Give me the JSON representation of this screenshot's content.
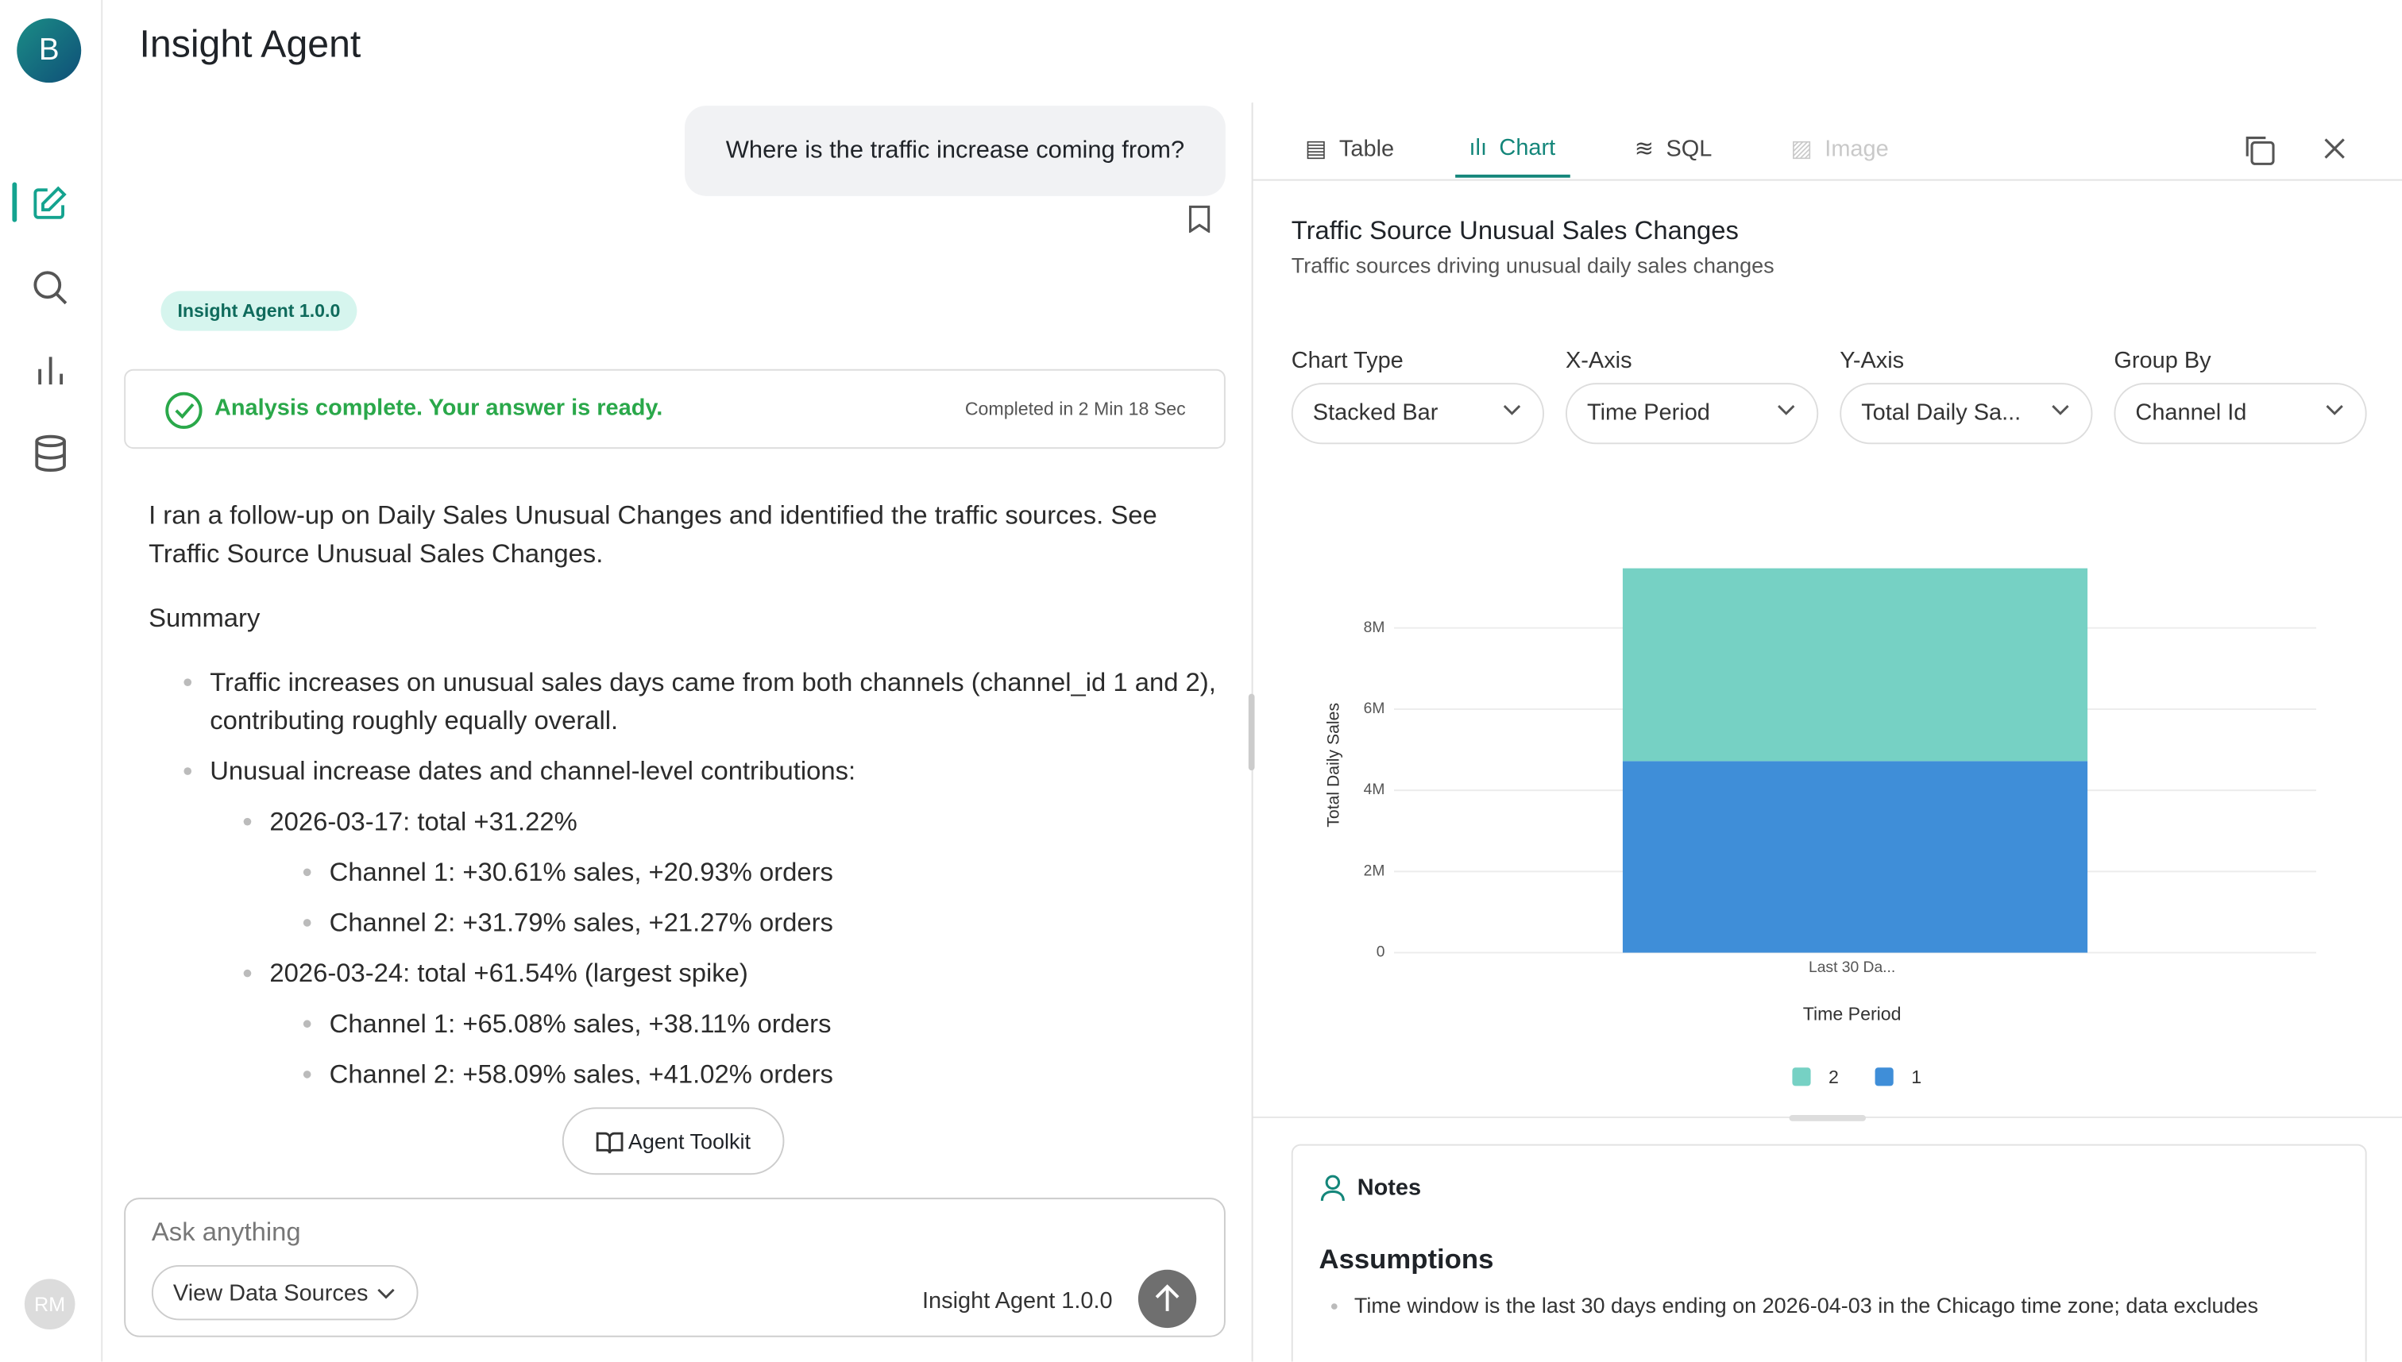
{
  "app": {
    "avatar": "B",
    "user": "RM"
  },
  "header": {
    "title": "Insight Agent"
  },
  "chat": {
    "question": "Where is the traffic increase coming from?",
    "badge": "Insight Agent 1.0.0",
    "status": "Analysis complete. Your answer is ready.",
    "duration": "Completed in 2 Min 18 Sec",
    "intro": "I ran a follow-up on Daily Sales Unusual Changes and identified the traffic sources. See Traffic Source Unusual Sales Changes.",
    "summary": {
      "heading": "Summary",
      "items": [
        {
          "text": "Traffic increases on unusual sales days came from both channels (channel_id 1 and 2), contributing roughly equally overall."
        },
        {
          "text": "Unusual increase dates and channel-level contributions:",
          "children": [
            {
              "text": "2026-03-17: total +31.22%",
              "children": [
                {
                  "text": "Channel 1: +30.61% sales, +20.93% orders"
                },
                {
                  "text": "Channel 2: +31.79% sales, +21.27% orders"
                }
              ]
            },
            {
              "text": "2026-03-24: total +61.54% (largest spike)",
              "children": [
                {
                  "text": "Channel 1: +65.08% sales, +38.11% orders"
                },
                {
                  "text": "Channel 2: +58.09% sales, +41.02% orders"
                }
              ]
            }
          ]
        }
      ]
    },
    "toolkit": "Agent Toolkit",
    "input_placeholder": "Ask anything",
    "data_sources": "View Data Sources",
    "footer_version": "Insight Agent 1.0.0"
  },
  "panel": {
    "tabs": [
      "Table",
      "Chart",
      "SQL",
      "Image"
    ],
    "controls": [
      {
        "label": "Chart Type",
        "value": "Stacked Bar"
      },
      {
        "label": "X-Axis",
        "value": "Time Period"
      },
      {
        "label": "Y-Axis",
        "value": "Total Daily Sa..."
      },
      {
        "label": "Group By",
        "value": "Channel Id"
      }
    ],
    "notes": {
      "title": "Notes",
      "heading": "Assumptions",
      "items": [
        "Time window is the last 30 days ending on 2026-04-03 in the Chicago time zone; data excludes"
      ]
    }
  },
  "chart_data": {
    "type": "stacked_bar",
    "title": "Traffic Source Unusual Sales Changes",
    "subtitle": "Traffic sources driving unusual daily sales changes",
    "x_label": "Time Period",
    "y_label": "Total Daily Sales",
    "categories": [
      "Last 30 Da..."
    ],
    "series": [
      {
        "name": "1",
        "color": "#3f8ed8",
        "values": [
          4720000
        ]
      },
      {
        "name": "2",
        "color": "#76d1c4",
        "values": [
          4750000
        ]
      }
    ],
    "ylim": [
      0,
      10000000
    ],
    "yticks": [
      0,
      {
        "value": 2000000,
        "label": "2M"
      },
      {
        "value": 4000000,
        "label": "4M"
      },
      {
        "value": 6000000,
        "label": "6M"
      },
      {
        "value": 8000000,
        "label": "8M"
      }
    ],
    "grid": true
  }
}
